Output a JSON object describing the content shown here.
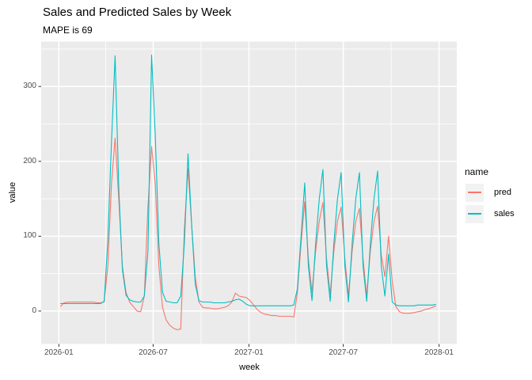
{
  "title": "Sales and Predicted Sales by Week",
  "subtitle": "MAPE is 69",
  "axes": {
    "x_label": "week",
    "y_label": "value",
    "x_tick_labels": [
      "2026-01",
      "2026-07",
      "2027-01",
      "2027-07",
      "2028-01"
    ],
    "y_tick_labels": [
      "0",
      "100",
      "200",
      "300"
    ]
  },
  "legend": {
    "title": "name",
    "entries": [
      {
        "label": "pred",
        "color": "#F8766D"
      },
      {
        "label": "sales",
        "color": "#00BFC4"
      }
    ]
  },
  "colors": {
    "panel_background": "#EBEBEB",
    "grid": "#FFFFFF",
    "axis_text": "#4D4D4D",
    "tick_mark": "#333333",
    "legend_key_background": "#F2F2F2",
    "pred": "#F8766D",
    "sales": "#00BFC4"
  },
  "chart_data": {
    "type": "line",
    "title": "Sales and Predicted Sales by Week",
    "subtitle": "MAPE is 69",
    "xlabel": "week",
    "ylabel": "value",
    "grid": true,
    "legend_position": "right",
    "x_domain": [
      "2025-11-28",
      "2028-02-04"
    ],
    "y_domain": [
      -44,
      360
    ],
    "x_tick_dates": [
      "2026-01-01",
      "2026-07-01",
      "2027-01-01",
      "2027-07-01",
      "2028-01-01"
    ],
    "x_tick_labels": [
      "2026-01",
      "2026-07",
      "2027-01",
      "2027-07",
      "2028-01"
    ],
    "x_minor_dates": [
      "2026-04-01",
      "2026-10-01",
      "2027-04-01",
      "2027-10-01"
    ],
    "y_major": [
      0,
      100,
      200,
      300
    ],
    "y_minor": [
      50,
      150,
      250,
      350
    ],
    "x": [
      "2026-01-04",
      "2026-01-11",
      "2026-01-18",
      "2026-01-25",
      "2026-02-01",
      "2026-02-08",
      "2026-02-15",
      "2026-02-22",
      "2026-03-01",
      "2026-03-08",
      "2026-03-15",
      "2026-03-22",
      "2026-03-29",
      "2026-04-05",
      "2026-04-12",
      "2026-04-19",
      "2026-04-26",
      "2026-05-03",
      "2026-05-10",
      "2026-05-17",
      "2026-05-24",
      "2026-05-31",
      "2026-06-07",
      "2026-06-14",
      "2026-06-21",
      "2026-06-28",
      "2026-07-05",
      "2026-07-12",
      "2026-07-19",
      "2026-07-26",
      "2026-08-02",
      "2026-08-09",
      "2026-08-16",
      "2026-08-23",
      "2026-08-30",
      "2026-09-06",
      "2026-09-13",
      "2026-09-20",
      "2026-09-27",
      "2026-10-04",
      "2026-10-11",
      "2026-10-18",
      "2026-10-25",
      "2026-11-01",
      "2026-11-08",
      "2026-11-15",
      "2026-11-22",
      "2026-11-29",
      "2026-12-06",
      "2026-12-13",
      "2026-12-20",
      "2026-12-27",
      "2027-01-03",
      "2027-01-10",
      "2027-01-17",
      "2027-01-24",
      "2027-01-31",
      "2027-02-07",
      "2027-02-14",
      "2027-02-21",
      "2027-02-28",
      "2027-03-07",
      "2027-03-14",
      "2027-03-21",
      "2027-03-28",
      "2027-04-04",
      "2027-04-11",
      "2027-04-18",
      "2027-04-25",
      "2027-05-02",
      "2027-05-09",
      "2027-05-16",
      "2027-05-23",
      "2027-05-30",
      "2027-06-06",
      "2027-06-13",
      "2027-06-20",
      "2027-06-27",
      "2027-07-04",
      "2027-07-11",
      "2027-07-18",
      "2027-07-25",
      "2027-08-01",
      "2027-08-08",
      "2027-08-15",
      "2027-08-22",
      "2027-08-29",
      "2027-09-05",
      "2027-09-12",
      "2027-09-19",
      "2027-09-26",
      "2027-10-03",
      "2027-10-10",
      "2027-10-17",
      "2027-10-24",
      "2027-10-31",
      "2027-11-07",
      "2027-11-14",
      "2027-11-21",
      "2027-11-28",
      "2027-12-05",
      "2027-12-12",
      "2027-12-19",
      "2027-12-26"
    ],
    "series": [
      {
        "name": "pred",
        "color": "#F8766D",
        "values": [
          6,
          11,
          12,
          12,
          12,
          12,
          12,
          12,
          12,
          12,
          11,
          11,
          12,
          60,
          170,
          231,
          150,
          60,
          25,
          12,
          6,
          0,
          -1,
          20,
          140,
          220,
          170,
          60,
          5,
          -12,
          -19,
          -23,
          -25,
          -24,
          110,
          190,
          115,
          45,
          12,
          5,
          4,
          4,
          3,
          3,
          4,
          5,
          7,
          12,
          24,
          20,
          19,
          18,
          14,
          8,
          2,
          -2,
          -4,
          -5,
          -6,
          -6,
          -7,
          -7,
          -7,
          -7,
          -8,
          25,
          90,
          146,
          70,
          25,
          80,
          120,
          145,
          70,
          22,
          80,
          120,
          139,
          70,
          20,
          80,
          120,
          137,
          70,
          20,
          80,
          120,
          140,
          75,
          46,
          100,
          40,
          6,
          -1,
          -3,
          -3,
          -3,
          -2,
          -1,
          0,
          2,
          3,
          5,
          7
        ]
      },
      {
        "name": "sales",
        "color": "#00BFC4",
        "values": [
          10,
          10,
          10,
          10,
          10,
          10,
          10,
          10,
          10,
          10,
          10,
          10,
          13,
          95,
          225,
          341,
          165,
          55,
          21,
          15,
          13,
          12,
          12,
          20,
          80,
          342,
          235,
          90,
          25,
          13,
          12,
          11,
          11,
          20,
          90,
          210,
          115,
          35,
          14,
          12,
          12,
          12,
          11,
          11,
          11,
          11,
          12,
          13,
          15,
          16,
          13,
          9,
          7,
          7,
          7,
          7,
          7,
          7,
          7,
          7,
          7,
          7,
          7,
          7,
          8,
          30,
          100,
          171,
          60,
          14,
          90,
          150,
          189,
          60,
          13,
          90,
          150,
          185,
          60,
          12,
          90,
          150,
          185,
          60,
          13,
          90,
          150,
          187,
          60,
          20,
          76,
          12,
          8,
          7,
          7,
          7,
          7,
          7,
          8,
          8,
          8,
          8,
          8,
          9
        ]
      }
    ]
  }
}
